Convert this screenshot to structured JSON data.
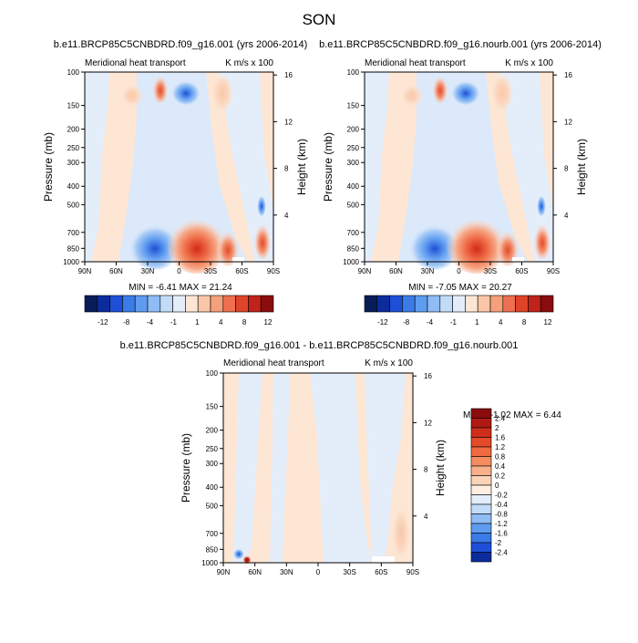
{
  "page_title": "SON",
  "chart_data": [
    {
      "type": "heatmap",
      "id": "p1",
      "title": "b.e11.BRCP85C5CNBDRD.f09_g16.001 (yrs 2006-2014)",
      "left_label": "Meridional heat transport",
      "right_label": "K m/s x 100",
      "ylabel": "Pressure (mb)",
      "ylabel_right": "Height (km)",
      "x_ticks": [
        "90N",
        "60N",
        "30N",
        "0",
        "30S",
        "60S",
        "90S"
      ],
      "y_ticks": [
        100,
        150,
        200,
        250,
        300,
        400,
        500,
        700,
        850,
        1000
      ],
      "y_ticks_right": [
        4,
        8,
        12,
        16
      ],
      "ylim": [
        1000,
        100
      ],
      "stats": "MIN =  -6.41   MAX =  21.24",
      "colorbar": {
        "orientation": "horizontal",
        "labels": [
          "-12",
          "-8",
          "-4",
          "-1",
          "1",
          "4",
          "8",
          "12"
        ],
        "colors": [
          "#081d58",
          "#0c2c9c",
          "#1d4fd8",
          "#3a7be8",
          "#5e9cf0",
          "#8fbcf5",
          "#c2dcf8",
          "#e4eefb",
          "#fde6d4",
          "#f9c7a8",
          "#f5a07a",
          "#ee7050",
          "#e04428",
          "#c0231a",
          "#8a0c0c"
        ]
      }
    },
    {
      "type": "heatmap",
      "id": "p2",
      "title": "b.e11.BRCP85C5CNBDRD.f09_g16.nourb.001 (yrs 2006-2014)",
      "left_label": "Meridional heat transport",
      "right_label": "K m/s x 100",
      "ylabel": "Pressure (mb)",
      "ylabel_right": "Height (km)",
      "x_ticks": [
        "90N",
        "60N",
        "30N",
        "0",
        "30S",
        "60S",
        "90S"
      ],
      "y_ticks": [
        100,
        150,
        200,
        250,
        300,
        400,
        500,
        700,
        850,
        1000
      ],
      "y_ticks_right": [
        4,
        8,
        12,
        16
      ],
      "ylim": [
        1000,
        100
      ],
      "stats": "MIN =  -7.05   MAX =  20.27",
      "colorbar": {
        "orientation": "horizontal",
        "labels": [
          "-12",
          "-8",
          "-4",
          "-1",
          "1",
          "4",
          "8",
          "12"
        ],
        "colors": [
          "#081d58",
          "#0c2c9c",
          "#1d4fd8",
          "#3a7be8",
          "#5e9cf0",
          "#8fbcf5",
          "#c2dcf8",
          "#e4eefb",
          "#fde6d4",
          "#f9c7a8",
          "#f5a07a",
          "#ee7050",
          "#e04428",
          "#c0231a",
          "#8a0c0c"
        ]
      }
    },
    {
      "type": "heatmap",
      "id": "p3",
      "title": "b.e11.BRCP85C5CNBDRD.f09_g16.001 - b.e11.BRCP85C5CNBDRD.f09_g16.nourb.001",
      "left_label": "Meridional heat transport",
      "right_label": "K m/s x 100",
      "ylabel": "Pressure (mb)",
      "ylabel_right": "Height (km)",
      "x_ticks": [
        "90N",
        "60N",
        "30N",
        "0",
        "30S",
        "60S",
        "90S"
      ],
      "y_ticks": [
        100,
        150,
        200,
        250,
        300,
        400,
        500,
        700,
        850,
        1000
      ],
      "y_ticks_right": [
        4,
        8,
        12,
        16
      ],
      "ylim": [
        1000,
        100
      ],
      "stats": "MIN =  -1.02   MAX =   6.44",
      "colorbar": {
        "orientation": "vertical",
        "labels": [
          "2.4",
          "2",
          "1.6",
          "1.2",
          "0.8",
          "0.4",
          "0.2",
          "0",
          "-0.2",
          "-0.4",
          "-0.8",
          "-1.2",
          "-1.6",
          "-2",
          "-2.4"
        ],
        "colors": [
          "#8a0c0c",
          "#b01a12",
          "#d02e1c",
          "#e64a28",
          "#f06a40",
          "#f48c60",
          "#f7b08a",
          "#fbd4b8",
          "#fdeee0",
          "#e4eefb",
          "#c2dcf8",
          "#8fbcf5",
          "#5e9cf0",
          "#3a7be8",
          "#1d4fd8",
          "#0c2c9c"
        ]
      }
    }
  ]
}
